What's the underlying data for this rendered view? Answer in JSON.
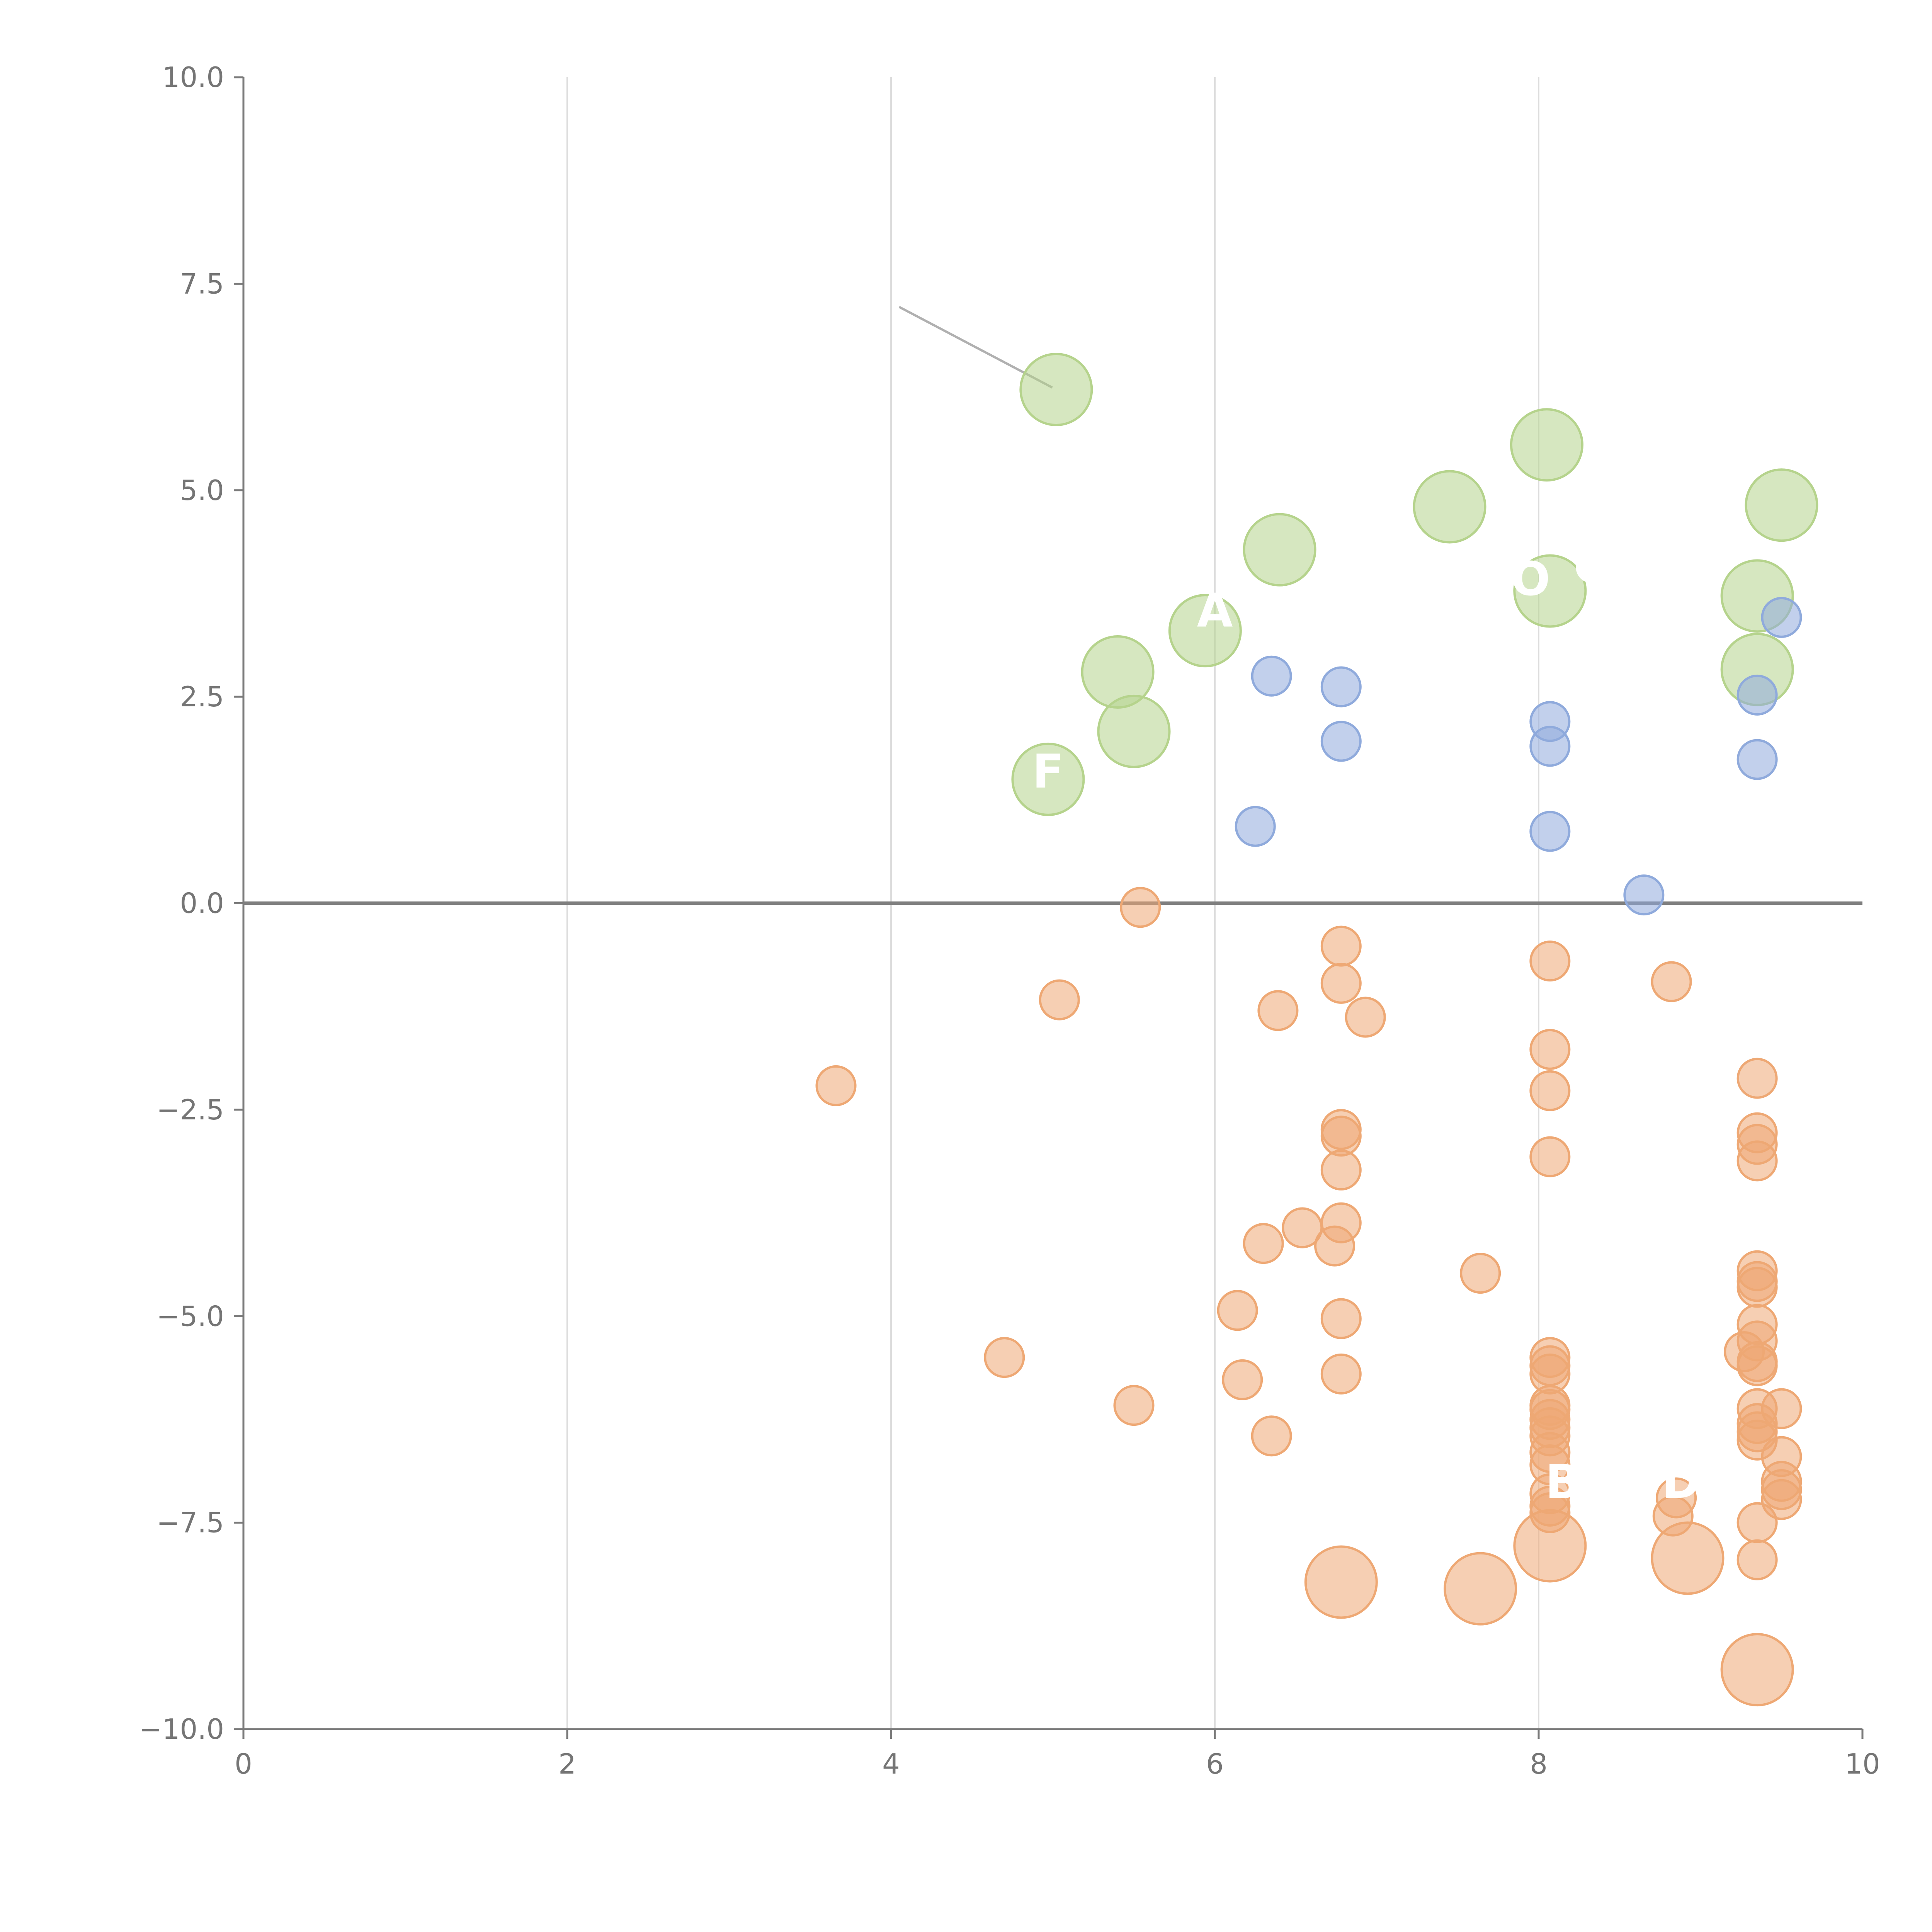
{
  "chart_data": {
    "type": "scatter",
    "title": "",
    "xlabel": "",
    "ylabel": "",
    "xlim": [
      0,
      10
    ],
    "ylim": [
      -10,
      10
    ],
    "x_ticks": [
      "0",
      "2",
      "4",
      "6",
      "8",
      "10"
    ],
    "y_ticks": [
      "10.0",
      "7.5",
      "5.0",
      "2.5",
      "0.0",
      "−2.5",
      "−5.0",
      "−7.5",
      "−10.0"
    ],
    "grid": "vertical",
    "colors": {
      "green": "#b5d38c",
      "blue": "#8faadc",
      "orange": "#eea874",
      "axis": "#7a7a7a",
      "grid": "#dddddd",
      "zero_line": "#7f7f7f"
    },
    "series": [
      {
        "name": "green",
        "size": "large",
        "points": [
          [
            5.02,
            6.22
          ],
          [
            8.05,
            5.55
          ],
          [
            7.45,
            4.8
          ],
          [
            9.5,
            4.82
          ],
          [
            6.4,
            4.28
          ],
          [
            8.07,
            3.78
          ],
          [
            9.35,
            3.72
          ],
          [
            5.94,
            3.3
          ],
          [
            5.4,
            2.8
          ],
          [
            9.35,
            2.83
          ],
          [
            5.5,
            2.08
          ],
          [
            4.97,
            1.5
          ]
        ]
      },
      {
        "name": "blue",
        "size": "small",
        "points": [
          [
            6.35,
            2.75
          ],
          [
            6.78,
            2.62
          ],
          [
            8.07,
            2.2
          ],
          [
            6.78,
            1.96
          ],
          [
            8.07,
            1.9
          ],
          [
            9.35,
            2.52
          ],
          [
            9.35,
            1.74
          ],
          [
            9.5,
            3.46
          ],
          [
            6.25,
            0.93
          ],
          [
            8.07,
            0.87
          ],
          [
            8.65,
            0.1
          ]
        ]
      },
      {
        "name": "orange",
        "size": "small",
        "points": [
          [
            5.54,
            -0.05
          ],
          [
            6.78,
            -0.52
          ],
          [
            8.07,
            -0.7
          ],
          [
            6.78,
            -0.97
          ],
          [
            8.82,
            -0.95
          ],
          [
            5.04,
            -1.17
          ],
          [
            6.39,
            -1.3
          ],
          [
            6.93,
            -1.38
          ],
          [
            8.07,
            -1.77
          ],
          [
            9.35,
            -2.12
          ],
          [
            3.66,
            -2.21
          ],
          [
            8.07,
            -2.27
          ],
          [
            6.78,
            -2.74
          ],
          [
            9.35,
            -2.78
          ],
          [
            6.78,
            -2.82
          ],
          [
            9.35,
            -2.92
          ],
          [
            8.07,
            -3.07
          ],
          [
            9.35,
            -3.12
          ],
          [
            6.78,
            -3.23
          ],
          [
            6.78,
            -3.87
          ],
          [
            6.54,
            -3.93
          ],
          [
            6.3,
            -4.12
          ],
          [
            6.74,
            -4.15
          ],
          [
            9.35,
            -4.45
          ],
          [
            7.64,
            -4.48
          ],
          [
            9.35,
            -4.58
          ],
          [
            9.35,
            -4.65
          ],
          [
            6.14,
            -4.93
          ],
          [
            6.78,
            -5.03
          ],
          [
            9.35,
            -5.1
          ],
          [
            9.35,
            -5.3
          ],
          [
            9.27,
            -5.43
          ],
          [
            4.7,
            -5.5
          ],
          [
            8.07,
            -5.5
          ],
          [
            8.07,
            -5.6
          ],
          [
            9.35,
            -5.55
          ],
          [
            9.35,
            -5.6
          ],
          [
            8.07,
            -5.7
          ],
          [
            6.78,
            -5.7
          ],
          [
            6.17,
            -5.77
          ],
          [
            5.5,
            -6.08
          ],
          [
            8.07,
            -6.08
          ],
          [
            8.07,
            -6.13
          ],
          [
            9.35,
            -6.12
          ],
          [
            9.5,
            -6.12
          ],
          [
            8.07,
            -6.25
          ],
          [
            9.35,
            -6.3
          ],
          [
            8.07,
            -6.35
          ],
          [
            9.35,
            -6.4
          ],
          [
            8.07,
            -6.45
          ],
          [
            6.35,
            -6.45
          ],
          [
            9.35,
            -6.5
          ],
          [
            8.07,
            -6.65
          ],
          [
            9.5,
            -6.7
          ],
          [
            8.07,
            -6.8
          ],
          [
            9.5,
            -7.0
          ],
          [
            9.5,
            -7.1
          ],
          [
            8.07,
            -7.15
          ],
          [
            8.85,
            -7.2
          ],
          [
            9.5,
            -7.22
          ],
          [
            8.07,
            -7.3
          ],
          [
            8.07,
            -7.38
          ],
          [
            8.83,
            -7.42
          ],
          [
            9.35,
            -7.5
          ],
          [
            9.35,
            -7.95
          ]
        ]
      },
      {
        "name": "orange-large",
        "size": "large",
        "points": [
          [
            8.07,
            -7.78
          ],
          [
            8.92,
            -7.93
          ],
          [
            6.78,
            -8.22
          ],
          [
            7.64,
            -8.3
          ],
          [
            9.35,
            -9.28
          ]
        ]
      }
    ],
    "annotations": [
      {
        "text": "F",
        "x": 4.97,
        "y": 1.4
      },
      {
        "text": "A",
        "x": 6.0,
        "y": 3.35
      },
      {
        "text": "O",
        "x": 7.95,
        "y": 3.73
      },
      {
        "text": "C",
        "x": 8.32,
        "y": 3.88
      },
      {
        "text": "B",
        "x": 8.15,
        "y": -7.2
      },
      {
        "text": "D",
        "x": 8.88,
        "y": -7.2
      }
    ]
  }
}
